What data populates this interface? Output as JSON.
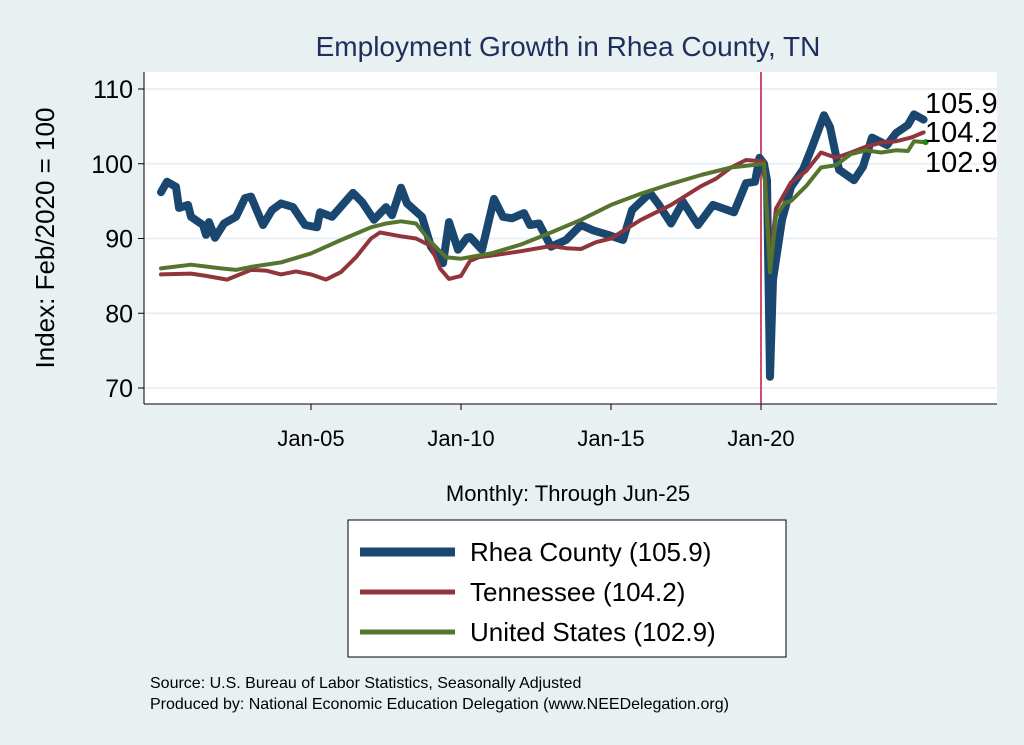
{
  "chart_data": {
    "type": "line",
    "title": "Employment Growth in Rhea  County, TN",
    "xlabel": "Monthly: Through Jun-25",
    "ylabel": "Index: Feb/2020 = 100",
    "ylim": [
      68,
      112
    ],
    "xlim": [
      1999.5,
      2028.0
    ],
    "yticks": [
      70,
      80,
      90,
      100,
      110
    ],
    "xticks": [
      {
        "x": 2005,
        "label": "Jan-05"
      },
      {
        "x": 2010,
        "label": "Jan-10"
      },
      {
        "x": 2015,
        "label": "Jan-15"
      },
      {
        "x": 2020,
        "label": "Jan-20"
      }
    ],
    "reference_line_x": 2020.0,
    "grid": true,
    "legend_placement": "bottom",
    "series": [
      {
        "name": "Rhea  County (105.9)",
        "end_label": "105.9",
        "color": "#1a476f",
        "width": 8,
        "points": [
          [
            2000.0,
            96.2
          ],
          [
            2000.2,
            97.6
          ],
          [
            2000.5,
            96.9
          ],
          [
            2000.6,
            94.1
          ],
          [
            2000.9,
            94.5
          ],
          [
            2001.0,
            92.9
          ],
          [
            2001.4,
            91.8
          ],
          [
            2001.5,
            90.5
          ],
          [
            2001.6,
            92.2
          ],
          [
            2001.8,
            90.1
          ],
          [
            2002.1,
            92.0
          ],
          [
            2002.5,
            92.9
          ],
          [
            2002.8,
            95.4
          ],
          [
            2003.0,
            95.6
          ],
          [
            2003.4,
            91.8
          ],
          [
            2003.7,
            93.8
          ],
          [
            2004.0,
            94.7
          ],
          [
            2004.4,
            94.2
          ],
          [
            2004.8,
            91.8
          ],
          [
            2005.2,
            91.5
          ],
          [
            2005.3,
            93.5
          ],
          [
            2005.7,
            92.9
          ],
          [
            2006.4,
            96.1
          ],
          [
            2006.7,
            94.9
          ],
          [
            2007.1,
            92.5
          ],
          [
            2007.5,
            94.2
          ],
          [
            2007.7,
            93.1
          ],
          [
            2008.0,
            96.8
          ],
          [
            2008.2,
            94.7
          ],
          [
            2008.7,
            92.9
          ],
          [
            2009.0,
            88.9
          ],
          [
            2009.4,
            86.7
          ],
          [
            2009.6,
            92.2
          ],
          [
            2009.9,
            88.5
          ],
          [
            2010.2,
            90.1
          ],
          [
            2010.3,
            90.2
          ],
          [
            2010.7,
            88.5
          ],
          [
            2011.1,
            95.3
          ],
          [
            2011.4,
            92.9
          ],
          [
            2011.7,
            92.7
          ],
          [
            2012.1,
            93.4
          ],
          [
            2012.3,
            91.8
          ],
          [
            2012.6,
            92.0
          ],
          [
            2013.0,
            88.9
          ],
          [
            2013.5,
            89.8
          ],
          [
            2014.0,
            91.8
          ],
          [
            2014.4,
            91.1
          ],
          [
            2014.9,
            90.5
          ],
          [
            2015.4,
            89.8
          ],
          [
            2015.7,
            93.8
          ],
          [
            2016.3,
            96.1
          ],
          [
            2016.6,
            94.5
          ],
          [
            2017.0,
            92.0
          ],
          [
            2017.4,
            94.9
          ],
          [
            2017.9,
            91.8
          ],
          [
            2018.4,
            94.5
          ],
          [
            2019.1,
            93.5
          ],
          [
            2019.5,
            97.4
          ],
          [
            2019.8,
            97.6
          ],
          [
            2019.95,
            100.8
          ],
          [
            2020.1,
            100.0
          ],
          [
            2020.2,
            97.8
          ],
          [
            2020.3,
            71.5
          ],
          [
            2020.4,
            84.5
          ],
          [
            2020.7,
            92.5
          ],
          [
            2021.0,
            96.9
          ],
          [
            2021.4,
            99.2
          ],
          [
            2021.7,
            102.2
          ],
          [
            2022.1,
            106.5
          ],
          [
            2022.3,
            104.9
          ],
          [
            2022.6,
            99.2
          ],
          [
            2023.1,
            97.8
          ],
          [
            2023.4,
            99.6
          ],
          [
            2023.7,
            103.5
          ],
          [
            2024.2,
            102.5
          ],
          [
            2024.5,
            104.1
          ],
          [
            2024.9,
            105.2
          ],
          [
            2025.1,
            106.6
          ],
          [
            2025.42,
            105.9
          ]
        ]
      },
      {
        "name": "Tennessee (104.2)",
        "end_label": "104.2",
        "color": "#90353b",
        "width": 4,
        "points": [
          [
            2000.0,
            85.2
          ],
          [
            2001.0,
            85.3
          ],
          [
            2001.5,
            85.0
          ],
          [
            2002.2,
            84.5
          ],
          [
            2003.0,
            85.8
          ],
          [
            2003.5,
            85.7
          ],
          [
            2004.0,
            85.2
          ],
          [
            2004.5,
            85.6
          ],
          [
            2005.0,
            85.2
          ],
          [
            2005.5,
            84.5
          ],
          [
            2006.0,
            85.5
          ],
          [
            2006.5,
            87.5
          ],
          [
            2007.0,
            90.0
          ],
          [
            2007.3,
            90.8
          ],
          [
            2008.0,
            90.3
          ],
          [
            2008.5,
            90.0
          ],
          [
            2009.0,
            89.0
          ],
          [
            2009.3,
            86.0
          ],
          [
            2009.6,
            84.6
          ],
          [
            2010.0,
            85.0
          ],
          [
            2010.3,
            87.0
          ],
          [
            2010.6,
            87.5
          ],
          [
            2011.0,
            87.7
          ],
          [
            2012.0,
            88.3
          ],
          [
            2013.0,
            89.0
          ],
          [
            2013.5,
            88.7
          ],
          [
            2014.0,
            88.6
          ],
          [
            2014.5,
            89.5
          ],
          [
            2015.0,
            90.0
          ],
          [
            2016.0,
            92.5
          ],
          [
            2017.0,
            94.5
          ],
          [
            2018.0,
            97.0
          ],
          [
            2018.5,
            98.0
          ],
          [
            2019.0,
            99.5
          ],
          [
            2019.5,
            100.5
          ],
          [
            2020.1,
            100.3
          ],
          [
            2020.3,
            87.0
          ],
          [
            2020.5,
            94.0
          ],
          [
            2021.0,
            97.5
          ],
          [
            2021.5,
            99.0
          ],
          [
            2022.0,
            101.5
          ],
          [
            2022.5,
            100.8
          ],
          [
            2023.0,
            101.5
          ],
          [
            2023.5,
            102.3
          ],
          [
            2024.0,
            102.8
          ],
          [
            2024.5,
            103.0
          ],
          [
            2025.0,
            103.5
          ],
          [
            2025.42,
            104.2
          ]
        ]
      },
      {
        "name": "United States (102.9)",
        "end_label": "102.9",
        "color": "#55752f",
        "width": 4,
        "points": [
          [
            2000.0,
            86.0
          ],
          [
            2001.0,
            86.5
          ],
          [
            2002.0,
            86.0
          ],
          [
            2002.5,
            85.8
          ],
          [
            2003.0,
            86.2
          ],
          [
            2004.0,
            86.8
          ],
          [
            2005.0,
            88.0
          ],
          [
            2006.0,
            89.8
          ],
          [
            2007.0,
            91.5
          ],
          [
            2007.5,
            92.0
          ],
          [
            2008.0,
            92.3
          ],
          [
            2008.5,
            92.0
          ],
          [
            2009.0,
            89.5
          ],
          [
            2009.5,
            87.5
          ],
          [
            2010.0,
            87.3
          ],
          [
            2011.0,
            88.0
          ],
          [
            2012.0,
            89.2
          ],
          [
            2013.0,
            90.8
          ],
          [
            2014.0,
            92.5
          ],
          [
            2015.0,
            94.5
          ],
          [
            2016.0,
            96.0
          ],
          [
            2017.0,
            97.3
          ],
          [
            2018.0,
            98.5
          ],
          [
            2019.0,
            99.5
          ],
          [
            2020.1,
            100.0
          ],
          [
            2020.3,
            85.5
          ],
          [
            2020.5,
            93.0
          ],
          [
            2020.8,
            94.8
          ],
          [
            2021.0,
            95.0
          ],
          [
            2021.5,
            97.0
          ],
          [
            2022.0,
            99.5
          ],
          [
            2022.5,
            99.8
          ],
          [
            2023.0,
            101.3
          ],
          [
            2023.5,
            101.8
          ],
          [
            2024.0,
            101.5
          ],
          [
            2024.5,
            101.8
          ],
          [
            2024.9,
            101.7
          ],
          [
            2025.1,
            103.0
          ],
          [
            2025.42,
            102.9
          ]
        ]
      }
    ],
    "notes": [
      "Source: U.S. Bureau of Labor Statistics, Seasonally Adjusted",
      "Produced by: National Economic Education Delegation (www.NEEDelegation.org)"
    ],
    "colors": {
      "background": "#e8f0f2",
      "plot": "#ffffff",
      "grid": "#eaf0f3",
      "ref_line": "#c0143c",
      "end_dot": "#1a8a1a"
    }
  }
}
